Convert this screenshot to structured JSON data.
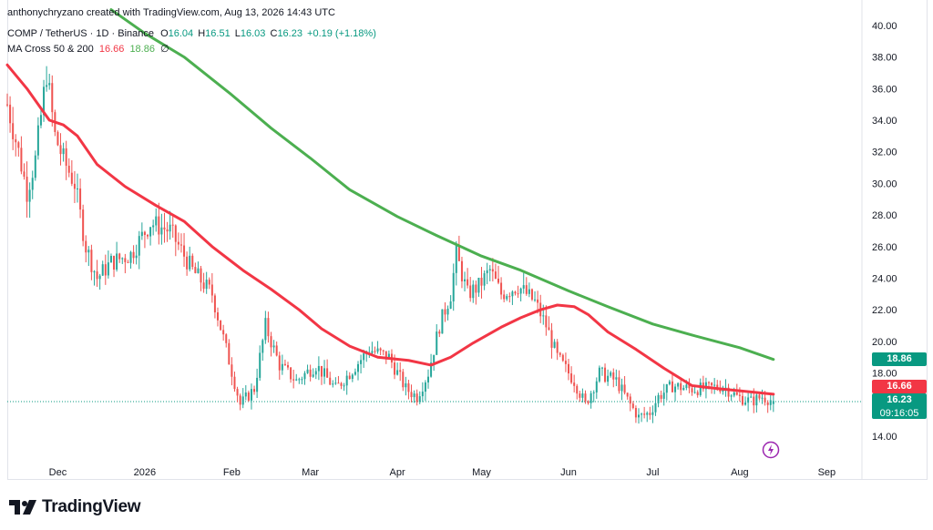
{
  "credit": "anthonychryzano created with TradingView.com, Aug 13, 2026 14:43 UTC",
  "legend": {
    "symbol": "COMP / TetherUS · 1D · Binance",
    "o_label": "O",
    "o": "16.04",
    "h_label": "H",
    "h": "16.51",
    "l_label": "L",
    "l": "16.03",
    "c_label": "C",
    "c": "16.23",
    "change": "+0.19 (+1.18%)",
    "indicator": "MA Cross 50 & 200",
    "ma50": "16.66",
    "ma200": "18.86",
    "empty": "∅"
  },
  "price_labels": {
    "ma200": "18.86",
    "ma50": "16.66",
    "last": "16.23",
    "countdown": "09:16:05"
  },
  "brand": "TradingView",
  "colors": {
    "up": "#26a69a",
    "down": "#ef5350",
    "ma50": "#f23645",
    "ma200": "#4caf50",
    "last_price": "#089981",
    "grid": "#f0f3fa"
  },
  "chart_data": {
    "type": "candlestick",
    "y_axis_ticks": [
      "14.00",
      "16.00",
      "18.00",
      "20.00",
      "22.00",
      "24.00",
      "26.00",
      "28.00",
      "30.00",
      "32.00",
      "34.00",
      "36.00",
      "38.00",
      "40.00"
    ],
    "x_axis_ticks": [
      "Dec",
      "2026",
      "Feb",
      "Mar",
      "Apr",
      "May",
      "Jun",
      "Jul",
      "Aug",
      "Sep"
    ],
    "ylim": [
      12.5,
      40.5
    ],
    "grid": false,
    "price_anchors": [
      {
        "date": "2025-11-13",
        "price": 35.0
      },
      {
        "date": "2025-11-17",
        "price": 32.0
      },
      {
        "date": "2025-11-20",
        "price": 29.5
      },
      {
        "date": "2025-11-23",
        "price": 31.5
      },
      {
        "date": "2025-11-27",
        "price": 37.0
      },
      {
        "date": "2025-11-30",
        "price": 33.0
      },
      {
        "date": "2025-12-03",
        "price": 31.5
      },
      {
        "date": "2025-12-07",
        "price": 30.0
      },
      {
        "date": "2025-12-11",
        "price": 26.0
      },
      {
        "date": "2025-12-15",
        "price": 24.0
      },
      {
        "date": "2025-12-20",
        "price": 25.0
      },
      {
        "date": "2025-12-27",
        "price": 25.5
      },
      {
        "date": "2026-01-03",
        "price": 27.5
      },
      {
        "date": "2026-01-10",
        "price": 27.0
      },
      {
        "date": "2026-01-18",
        "price": 24.5
      },
      {
        "date": "2026-01-25",
        "price": 23.0
      },
      {
        "date": "2026-01-30",
        "price": 19.5
      },
      {
        "date": "2026-02-04",
        "price": 16.0
      },
      {
        "date": "2026-02-09",
        "price": 17.0
      },
      {
        "date": "2026-02-13",
        "price": 21.0
      },
      {
        "date": "2026-02-18",
        "price": 18.5
      },
      {
        "date": "2026-02-24",
        "price": 17.5
      },
      {
        "date": "2026-03-03",
        "price": 18.5
      },
      {
        "date": "2026-03-10",
        "price": 17.0
      },
      {
        "date": "2026-03-15",
        "price": 18.0
      },
      {
        "date": "2026-03-22",
        "price": 19.5
      },
      {
        "date": "2026-03-29",
        "price": 19.0
      },
      {
        "date": "2026-04-04",
        "price": 17.0
      },
      {
        "date": "2026-04-08",
        "price": 16.5
      },
      {
        "date": "2026-04-12",
        "price": 18.0
      },
      {
        "date": "2026-04-16",
        "price": 21.0
      },
      {
        "date": "2026-04-20",
        "price": 23.0
      },
      {
        "date": "2026-04-22",
        "price": 25.5
      },
      {
        "date": "2026-04-26",
        "price": 23.0
      },
      {
        "date": "2026-04-30",
        "price": 23.5
      },
      {
        "date": "2026-05-04",
        "price": 24.5
      },
      {
        "date": "2026-05-08",
        "price": 23.0
      },
      {
        "date": "2026-05-14",
        "price": 23.5
      },
      {
        "date": "2026-05-20",
        "price": 22.5
      },
      {
        "date": "2026-05-24",
        "price": 21.0
      },
      {
        "date": "2026-05-28",
        "price": 19.0
      },
      {
        "date": "2026-06-03",
        "price": 17.5
      },
      {
        "date": "2026-06-07",
        "price": 16.0
      },
      {
        "date": "2026-06-12",
        "price": 18.0
      },
      {
        "date": "2026-06-18",
        "price": 17.5
      },
      {
        "date": "2026-06-23",
        "price": 16.0
      },
      {
        "date": "2026-06-26",
        "price": 15.2
      },
      {
        "date": "2026-06-30",
        "price": 15.5
      },
      {
        "date": "2026-07-03",
        "price": 16.5
      },
      {
        "date": "2026-07-08",
        "price": 17.2
      },
      {
        "date": "2026-07-14",
        "price": 17.0
      },
      {
        "date": "2026-07-20",
        "price": 17.0
      },
      {
        "date": "2026-07-26",
        "price": 17.2
      },
      {
        "date": "2026-07-31",
        "price": 16.5
      },
      {
        "date": "2026-08-05",
        "price": 16.2
      },
      {
        "date": "2026-08-09",
        "price": 16.5
      },
      {
        "date": "2026-08-13",
        "price": 16.23
      }
    ],
    "series": [
      {
        "name": "MA 50",
        "color": "#f23645",
        "points": [
          {
            "date": "2025-11-13",
            "price": 37.5
          },
          {
            "date": "2025-11-20",
            "price": 36.0
          },
          {
            "date": "2025-11-28",
            "price": 34.0
          },
          {
            "date": "2025-12-03",
            "price": 33.7
          },
          {
            "date": "2025-12-08",
            "price": 33.0
          },
          {
            "date": "2025-12-15",
            "price": 31.2
          },
          {
            "date": "2025-12-25",
            "price": 29.8
          },
          {
            "date": "2026-01-05",
            "price": 28.6
          },
          {
            "date": "2026-01-15",
            "price": 27.6
          },
          {
            "date": "2026-01-25",
            "price": 26.0
          },
          {
            "date": "2026-02-05",
            "price": 24.5
          },
          {
            "date": "2026-02-15",
            "price": 23.3
          },
          {
            "date": "2026-02-25",
            "price": 22.0
          },
          {
            "date": "2026-03-05",
            "price": 20.8
          },
          {
            "date": "2026-03-15",
            "price": 19.7
          },
          {
            "date": "2026-03-25",
            "price": 19.0
          },
          {
            "date": "2026-04-05",
            "price": 18.8
          },
          {
            "date": "2026-04-13",
            "price": 18.5
          },
          {
            "date": "2026-04-20",
            "price": 19.0
          },
          {
            "date": "2026-04-28",
            "price": 19.9
          },
          {
            "date": "2026-05-08",
            "price": 20.9
          },
          {
            "date": "2026-05-15",
            "price": 21.5
          },
          {
            "date": "2026-05-22",
            "price": 22.0
          },
          {
            "date": "2026-05-28",
            "price": 22.3
          },
          {
            "date": "2026-06-03",
            "price": 22.2
          },
          {
            "date": "2026-06-08",
            "price": 21.7
          },
          {
            "date": "2026-06-15",
            "price": 20.6
          },
          {
            "date": "2026-06-25",
            "price": 19.5
          },
          {
            "date": "2026-07-05",
            "price": 18.3
          },
          {
            "date": "2026-07-15",
            "price": 17.2
          },
          {
            "date": "2026-07-25",
            "price": 17.0
          },
          {
            "date": "2026-08-05",
            "price": 16.8
          },
          {
            "date": "2026-08-13",
            "price": 16.66
          }
        ]
      },
      {
        "name": "MA 200",
        "color": "#4caf50",
        "points": [
          {
            "date": "2025-12-20",
            "price": 41.0
          },
          {
            "date": "2026-01-01",
            "price": 39.5
          },
          {
            "date": "2026-01-15",
            "price": 38.0
          },
          {
            "date": "2026-02-01",
            "price": 35.6
          },
          {
            "date": "2026-02-15",
            "price": 33.5
          },
          {
            "date": "2026-03-01",
            "price": 31.6
          },
          {
            "date": "2026-03-15",
            "price": 29.6
          },
          {
            "date": "2026-04-01",
            "price": 27.9
          },
          {
            "date": "2026-04-15",
            "price": 26.7
          },
          {
            "date": "2026-05-01",
            "price": 25.4
          },
          {
            "date": "2026-05-15",
            "price": 24.5
          },
          {
            "date": "2026-06-01",
            "price": 23.2
          },
          {
            "date": "2026-06-15",
            "price": 22.2
          },
          {
            "date": "2026-07-01",
            "price": 21.1
          },
          {
            "date": "2026-07-15",
            "price": 20.4
          },
          {
            "date": "2026-08-01",
            "price": 19.6
          },
          {
            "date": "2026-08-13",
            "price": 18.86
          }
        ]
      }
    ]
  }
}
